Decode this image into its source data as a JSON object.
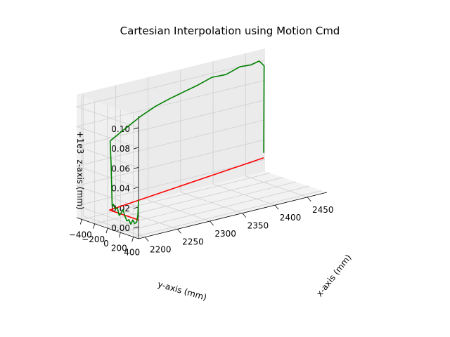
{
  "chart_data": {
    "type": "line",
    "title": "Cartesian Interpolation using Motion Cmd",
    "xlabel": "x-axis (mm)",
    "ylabel": "y-axis (mm)",
    "zlabel": "z-axis (mm)",
    "z_offset_label": "+1e3",
    "x_ticks": [
      "2200",
      "2250",
      "2300",
      "2350",
      "2400",
      "2450"
    ],
    "y_ticks": [
      "400",
      "200",
      "0",
      "−200",
      "−400"
    ],
    "z_ticks": [
      "0.00",
      "0.02",
      "0.04",
      "0.06",
      "0.08",
      "0.10"
    ],
    "grid": true,
    "series": [
      {
        "color": "#ff0000",
        "points": [
          [
            2195,
            430,
            1000.005
          ],
          [
            2195,
            -20,
            1000.005
          ],
          [
            2470,
            -400,
            1000.005
          ]
        ]
      },
      {
        "color": "#008000",
        "points": [
          [
            2195,
            430,
            1000.025
          ],
          [
            2195,
            420,
            1000.01
          ],
          [
            2195,
            400,
            1000.002
          ],
          [
            2195,
            370,
            1000.0
          ],
          [
            2195,
            340,
            1000.003
          ],
          [
            2195,
            310,
            999.998
          ],
          [
            2195,
            280,
            1000.002
          ],
          [
            2195,
            250,
            1000.0
          ],
          [
            2195,
            220,
            1000.004
          ],
          [
            2195,
            190,
            1000.01
          ],
          [
            2195,
            160,
            1000.006
          ],
          [
            2195,
            130,
            1000.003
          ],
          [
            2195,
            100,
            1000.01
          ],
          [
            2195,
            70,
            1000.008
          ],
          [
            2195,
            40,
            1000.012
          ],
          [
            2195,
            20,
            1000.01
          ],
          [
            2195,
            5,
            1000.05
          ],
          [
            2195,
            -10,
            1000.075
          ],
          [
            2210,
            -20,
            1000.08
          ],
          [
            2230,
            -50,
            1000.085
          ],
          [
            2250,
            -80,
            1000.09
          ],
          [
            2275,
            -110,
            1000.095
          ],
          [
            2300,
            -140,
            1000.098
          ],
          [
            2325,
            -175,
            1000.1
          ],
          [
            2350,
            -210,
            1000.102
          ],
          [
            2375,
            -245,
            1000.105
          ],
          [
            2400,
            -280,
            1000.103
          ],
          [
            2425,
            -315,
            1000.106
          ],
          [
            2445,
            -345,
            1000.104
          ],
          [
            2460,
            -370,
            1000.105
          ],
          [
            2470,
            -395,
            1000.098
          ],
          [
            2470,
            -400,
            1000.01
          ]
        ]
      }
    ]
  }
}
